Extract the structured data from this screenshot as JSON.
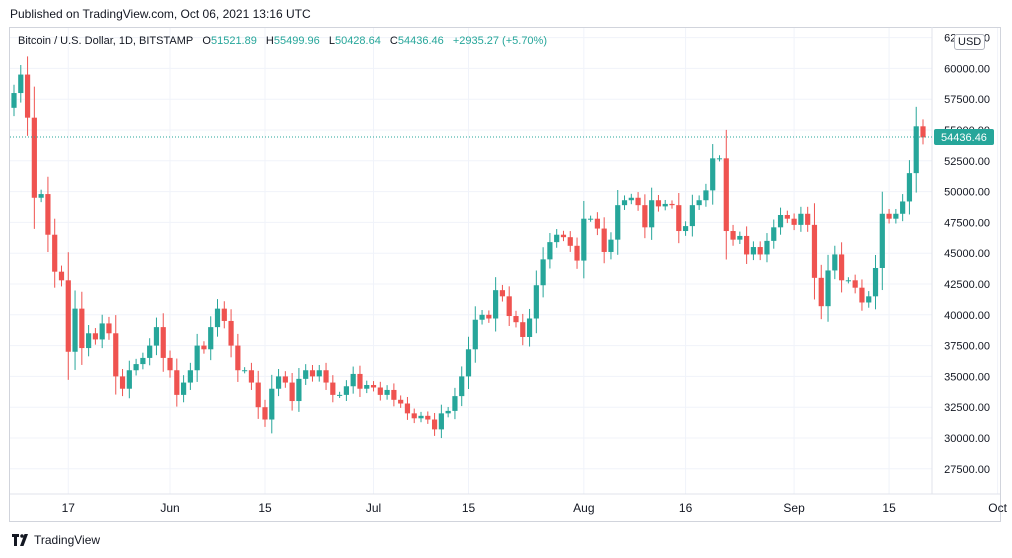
{
  "header": {
    "published": "Published on TradingView.com, Oct 06, 2021 13:16 UTC"
  },
  "legend": {
    "symbol": "Bitcoin / U.S. Dollar, 1D, BITSTAMP",
    "o_label": "O",
    "o_value": "51521.89",
    "h_label": "H",
    "h_value": "55499.96",
    "l_label": "L",
    "l_value": "50428.64",
    "c_label": "C",
    "c_value": "54436.46",
    "change": "+2935.27 (+5.70%)"
  },
  "currency": "USD",
  "footer": {
    "brand": "TradingView"
  },
  "colors": {
    "up": "#26a69a",
    "down": "#ef5350",
    "grid": "#f0f3fa",
    "last_price": "#26a69a"
  },
  "chart_data": {
    "type": "candlestick",
    "x_tick_labels": [
      "17",
      "Jun",
      "15",
      "Jul",
      "15",
      "Aug",
      "16",
      "Sep",
      "15",
      "Oct"
    ],
    "x_tick_dates": [
      "2021-05-17",
      "2021-06-01",
      "2021-06-15",
      "2021-07-01",
      "2021-07-15",
      "2021-08-01",
      "2021-08-16",
      "2021-09-01",
      "2021-09-15",
      "2021-10-01"
    ],
    "y_tick_labels": [
      "27500.00",
      "30000.00",
      "32500.00",
      "35000.00",
      "37500.00",
      "40000.00",
      "42500.00",
      "45000.00",
      "47500.00",
      "50000.00",
      "52500.00",
      "55000.00",
      "57500.00",
      "60000.00",
      "62500.00"
    ],
    "ylim": [
      25000,
      63000
    ],
    "start_date": "2021-05-09",
    "last_price": 54436.46,
    "last_price_label": "54436.46",
    "close": [
      58000,
      59500,
      56000,
      49500,
      49800,
      46500,
      43500,
      42800,
      37000,
      40500,
      37300,
      38500,
      38000,
      39300,
      38500,
      35000,
      34000,
      35500,
      36000,
      36500,
      37500,
      39000,
      36500,
      35500,
      33500,
      34500,
      35500,
      37500,
      37200,
      39000,
      40500,
      39500,
      37500,
      35500,
      35500,
      34500,
      32500,
      31500,
      34000,
      35000,
      34500,
      33000,
      34800,
      35500,
      35000,
      35500,
      34500,
      33500,
      33500,
      34200,
      35200,
      34000,
      34300,
      34100,
      33500,
      33900,
      33100,
      32800,
      32000,
      31600,
      31800,
      31500,
      30700,
      32000,
      32200,
      33400,
      35000,
      37200,
      39600,
      40000,
      39700,
      42000,
      41500,
      39900,
      39400,
      38200,
      39700,
      42400,
      44500,
      45900,
      46500,
      46300,
      45600,
      44400,
      47800,
      47800,
      47000,
      45100,
      46100,
      48900,
      49300,
      49500,
      48900,
      47100,
      49300,
      48800,
      49000,
      48900,
      46800,
      47200,
      48900,
      49300,
      50100,
      52700,
      52700,
      46800,
      46100,
      46400,
      44900,
      45500,
      44900,
      46000,
      47100,
      48100,
      47800,
      47300,
      48200,
      47300,
      43000,
      40700,
      43600,
      44900,
      42800,
      42800,
      42200,
      41000,
      41500,
      43800,
      48200,
      47800,
      48200,
      49200,
      51500,
      55300,
      54400
    ],
    "series": [
      {
        "name": "Bitcoin / U.S. Dollar"
      }
    ]
  }
}
